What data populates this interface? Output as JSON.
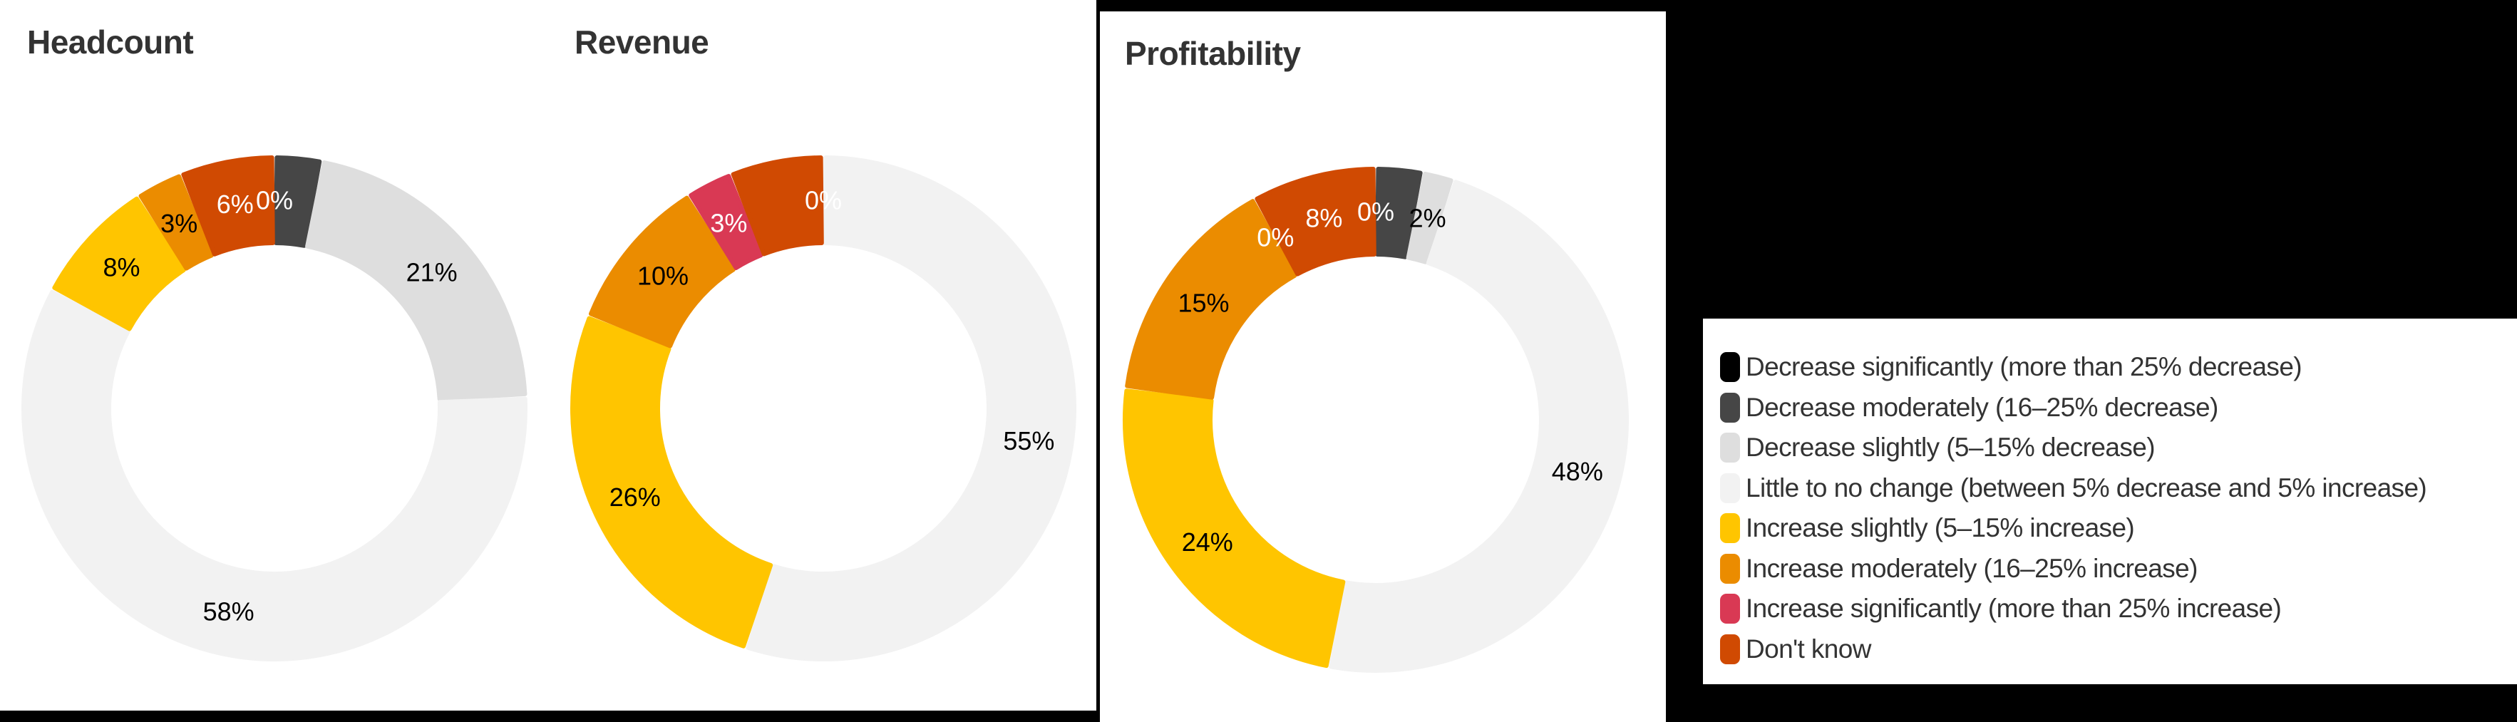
{
  "categories": [
    {
      "key": "dec_sig",
      "label": "Decrease significantly (more than 25% decrease)",
      "color": "#000000"
    },
    {
      "key": "dec_mod",
      "label": "Decrease moderately (16–25% decrease)",
      "color": "#464646"
    },
    {
      "key": "dec_sli",
      "label": "Decrease slightly (5–15% decrease)",
      "color": "#DEDEDE"
    },
    {
      "key": "no_change",
      "label": "Little to no change (between 5% decrease and 5% increase)",
      "color": "#F2F2F2"
    },
    {
      "key": "inc_sli",
      "label": "Increase slightly (5–15% increase)",
      "color": "#FFC500"
    },
    {
      "key": "inc_mod",
      "label": "Increase moderately (16–25% increase)",
      "color": "#EB8C00"
    },
    {
      "key": "inc_sig",
      "label": "Increase significantly (more than 25% increase)",
      "color": "#D93954"
    },
    {
      "key": "dont_know",
      "label": "Don't know",
      "color": "#D04A02"
    }
  ],
  "charts": {
    "headcount": {
      "title": "Headcount"
    },
    "revenue": {
      "title": "Revenue"
    },
    "profitability": {
      "title": "Profitability"
    }
  },
  "chart_data": [
    {
      "type": "pie",
      "subtype": "donut",
      "title": "Headcount",
      "direction": "clockwise from 12 o'clock",
      "categories": [
        "Decrease significantly (more than 25% decrease)",
        "Decrease moderately (16–25% decrease)",
        "Decrease slightly (5–15% decrease)",
        "Little to no change (between 5% decrease and 5% increase)",
        "Increase slightly (5–15% increase)",
        "Increase moderately (16–25% increase)",
        "Increase significantly (more than 25% increase)",
        "Don't know"
      ],
      "values": [
        0,
        3,
        21,
        58,
        8,
        3,
        0,
        6
      ],
      "labels": [
        "0%",
        "",
        "21%",
        "58%",
        "8%",
        "3%",
        "",
        "6%"
      ],
      "label_colors": [
        "#ffffff",
        "#ffffff",
        "#000000",
        "#000000",
        "#000000",
        "#000000",
        "#ffffff",
        "#ffffff"
      ]
    },
    {
      "type": "pie",
      "subtype": "donut",
      "title": "Revenue",
      "direction": "clockwise from 12 o'clock",
      "categories": [
        "Decrease significantly (more than 25% decrease)",
        "Decrease moderately (16–25% decrease)",
        "Decrease slightly (5–15% decrease)",
        "Little to no change (between 5% decrease and 5% increase)",
        "Increase slightly (5–15% increase)",
        "Increase moderately (16–25% increase)",
        "Increase significantly (more than 25% increase)",
        "Don't know"
      ],
      "values": [
        0,
        0,
        0,
        55,
        26,
        10,
        3,
        6
      ],
      "labels": [
        "0%",
        "",
        "",
        "55%",
        "26%",
        "10%",
        "3%",
        ""
      ],
      "label_colors": [
        "#ffffff",
        "#ffffff",
        "#000000",
        "#000000",
        "#000000",
        "#000000",
        "#ffffff",
        "#ffffff"
      ]
    },
    {
      "type": "pie",
      "subtype": "donut",
      "title": "Profitability",
      "direction": "clockwise from 12 o'clock",
      "categories": [
        "Decrease significantly (more than 25% decrease)",
        "Decrease moderately (16–25% decrease)",
        "Decrease slightly (5–15% decrease)",
        "Little to no change (between 5% decrease and 5% increase)",
        "Increase slightly (5–15% increase)",
        "Increase moderately (16–25% increase)",
        "Increase significantly (more than 25% increase)",
        "Don't know"
      ],
      "values": [
        0,
        3,
        2,
        48,
        24,
        15,
        0,
        8
      ],
      "labels": [
        "0%",
        "",
        "2%",
        "48%",
        "24%",
        "15%",
        "0%",
        "8%"
      ],
      "label_colors": [
        "#ffffff",
        "#ffffff",
        "#000000",
        "#000000",
        "#000000",
        "#000000",
        "#ffffff",
        "#ffffff"
      ]
    }
  ],
  "legend": {
    "items": [
      "Decrease significantly (more than 25% decrease)",
      "Decrease moderately (16–25% decrease)",
      "Decrease slightly (5–15% decrease)",
      "Little to no change (between 5% decrease and 5% increase)",
      "Increase slightly (5–15% increase)",
      "Increase moderately (16–25% increase)",
      "Increase significantly (more than 25% increase)",
      "Don't know"
    ]
  }
}
